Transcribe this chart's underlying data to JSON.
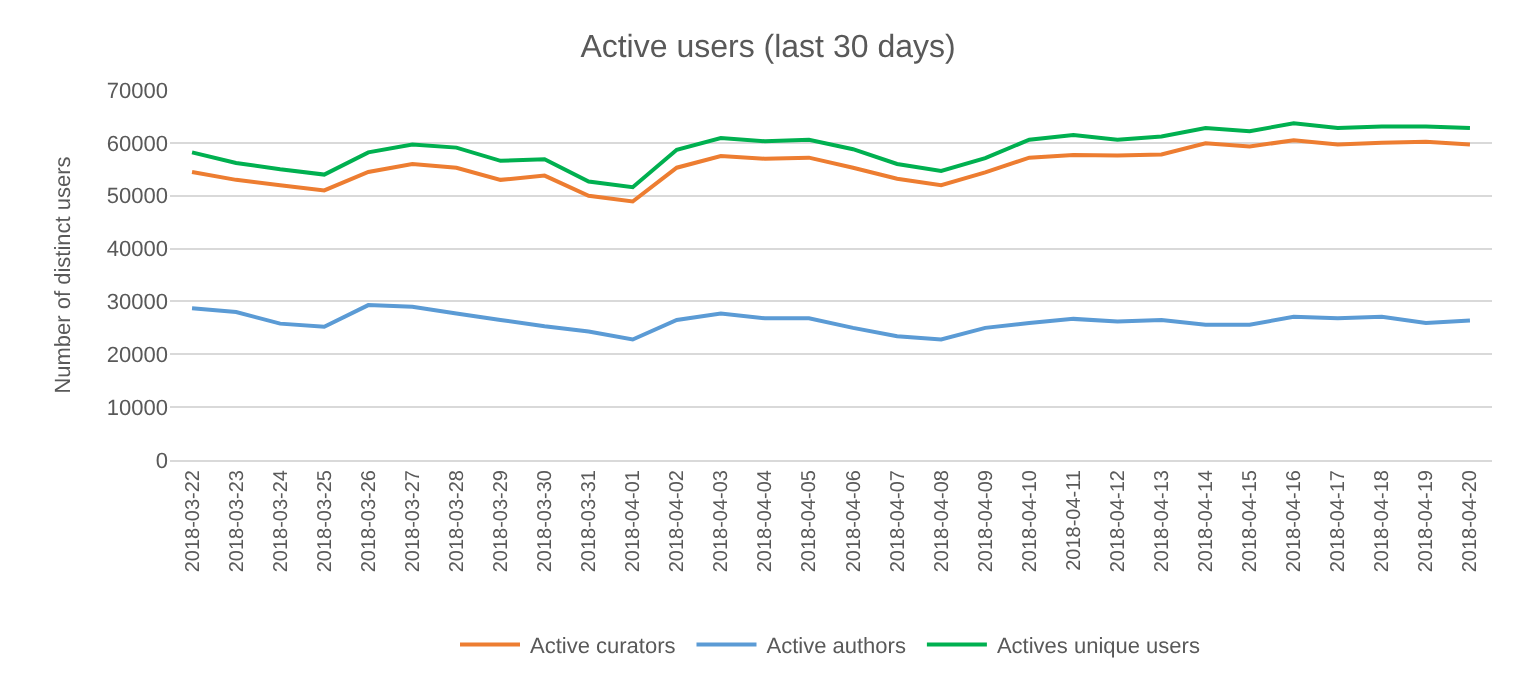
{
  "chart_data": {
    "type": "line",
    "title": "Active users (last 30 days)",
    "ylabel": "Number of distinct users",
    "categories": [
      "2018-03-22",
      "2018-03-23",
      "2018-03-24",
      "2018-03-25",
      "2018-03-26",
      "2018-03-27",
      "2018-03-28",
      "2018-03-29",
      "2018-03-30",
      "2018-03-31",
      "2018-04-01",
      "2018-04-02",
      "2018-04-03",
      "2018-04-04",
      "2018-04-05",
      "2018-04-06",
      "2018-04-07",
      "2018-04-08",
      "2018-04-09",
      "2018-04-10",
      "2018-04-11",
      "2018-04-12",
      "2018-04-13",
      "2018-04-14",
      "2018-04-15",
      "2018-04-16",
      "2018-04-17",
      "2018-04-18",
      "2018-04-19",
      "2018-04-20"
    ],
    "series": [
      {
        "name": "Active curators",
        "color": "#ed7d31",
        "values": [
          54500,
          53000,
          52000,
          51000,
          54500,
          56000,
          55300,
          53000,
          53800,
          50000,
          48900,
          55300,
          57500,
          57000,
          57200,
          55300,
          53200,
          52000,
          54400,
          57200,
          57700,
          57600,
          57800,
          59900,
          59300,
          60500,
          59700,
          60000,
          60200,
          59700
        ]
      },
      {
        "name": "Active authors",
        "color": "#5b9bd5",
        "values": [
          28700,
          28000,
          25800,
          25200,
          29300,
          29000,
          27700,
          26500,
          25300,
          24300,
          22800,
          26500,
          27700,
          26800,
          26800,
          25000,
          23400,
          22800,
          25000,
          25900,
          26700,
          26200,
          26500,
          25600,
          25600,
          27100,
          26800,
          27100,
          25900,
          26400
        ]
      },
      {
        "name": "Actives unique users",
        "color": "#00b050",
        "values": [
          58200,
          56200,
          55000,
          54000,
          58200,
          59700,
          59100,
          56600,
          56900,
          52700,
          51600,
          58700,
          60900,
          60300,
          60600,
          58800,
          56000,
          54700,
          57100,
          60600,
          61500,
          60600,
          61200,
          62800,
          62200,
          63700,
          62800,
          63100,
          63100,
          62800
        ]
      }
    ],
    "ylim": [
      0,
      70000
    ],
    "yticks": [
      0,
      10000,
      20000,
      30000,
      40000,
      50000,
      60000,
      70000
    ],
    "grid": "y",
    "legend": "bottom",
    "marker": "none",
    "line_style": "solid"
  }
}
